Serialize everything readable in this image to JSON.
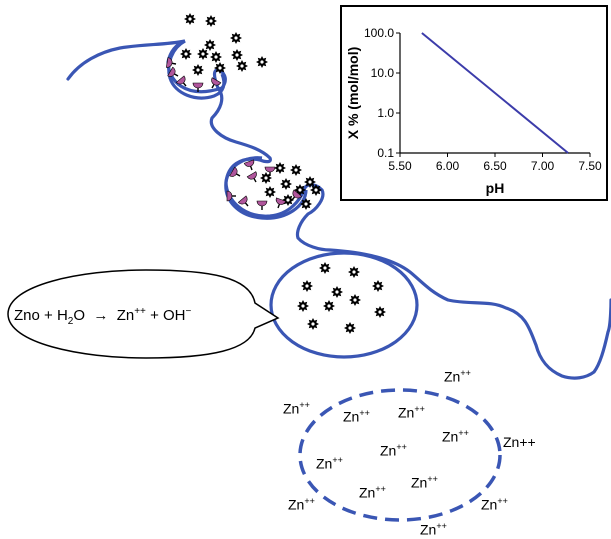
{
  "chart_data": {
    "type": "line",
    "xlabel": "pH",
    "ylabel": "X % (mol/mol)",
    "yscale": "log",
    "xlim": [
      5.5,
      7.5
    ],
    "ylim": [
      0.1,
      100
    ],
    "x_ticks": [
      "5.50",
      "6.00",
      "6.50",
      "7.00",
      "7.50"
    ],
    "y_ticks": [
      "0.1",
      "1.0",
      "10.0",
      "100.0"
    ],
    "grid": false,
    "series": [
      {
        "x": [
          5.73,
          7.27
        ],
        "y": [
          100,
          0.1
        ],
        "color": "#3c3caa"
      }
    ]
  },
  "equation": {
    "lhs": "Zno + H",
    "lhs_sub": "2",
    "lhs_tail": "O",
    "arrow": "→",
    "rhs_a": "Zn",
    "rhs_a_sup": "++",
    "rhs_b": " + OH",
    "rhs_b_sup": "−"
  },
  "ions": {
    "base": "Zn",
    "charge": "++",
    "plain": "Zn++"
  },
  "colors": {
    "polymer": "#3a56b4",
    "pink": "#b0569c",
    "line": "#3c3caa"
  },
  "icons": {
    "particle": "star-particle-icon"
  }
}
